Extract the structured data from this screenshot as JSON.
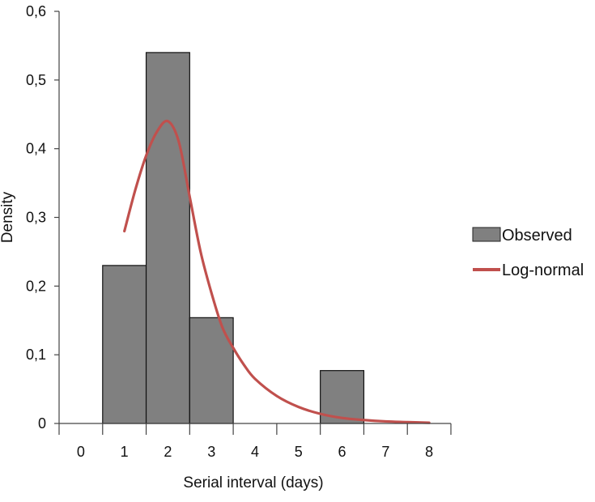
{
  "chart_data": {
    "type": "bar",
    "title": "",
    "xlabel": "Serial interval (days)",
    "ylabel": "Density",
    "xlim": [
      -0.5,
      8.5
    ],
    "ylim": [
      0,
      0.6
    ],
    "x_ticks": [
      "0",
      "1",
      "2",
      "3",
      "4",
      "5",
      "6",
      "7",
      "8"
    ],
    "y_ticks": [
      {
        "value": 0,
        "label": "0"
      },
      {
        "value": 0.1,
        "label": "0,1"
      },
      {
        "value": 0.2,
        "label": "0,2"
      },
      {
        "value": 0.3,
        "label": "0,3"
      },
      {
        "value": 0.4,
        "label": "0,4"
      },
      {
        "value": 0.5,
        "label": "0,5"
      },
      {
        "value": 0.6,
        "label": "0,6"
      }
    ],
    "grid": false,
    "legend_position": "right",
    "series": [
      {
        "name": "Observed",
        "type": "bar",
        "color": "#808080",
        "x": [
          1,
          2,
          3,
          4,
          5,
          6
        ],
        "values": [
          0.23,
          0.54,
          0.154,
          0,
          0,
          0.077
        ]
      },
      {
        "name": "Log-normal",
        "type": "line",
        "color": "#c0504d",
        "x": [
          1.0,
          1.25,
          1.5,
          1.75,
          2.0,
          2.25,
          2.5,
          2.75,
          3.0,
          3.25,
          3.5,
          3.75,
          4.0,
          4.5,
          5.0,
          5.5,
          6.0,
          6.5,
          7.0,
          7.5,
          8.0
        ],
        "values": [
          0.28,
          0.34,
          0.39,
          0.425,
          0.44,
          0.41,
          0.33,
          0.25,
          0.19,
          0.14,
          0.11,
          0.085,
          0.065,
          0.04,
          0.024,
          0.014,
          0.008,
          0.005,
          0.003,
          0.002,
          0.001
        ]
      }
    ]
  }
}
